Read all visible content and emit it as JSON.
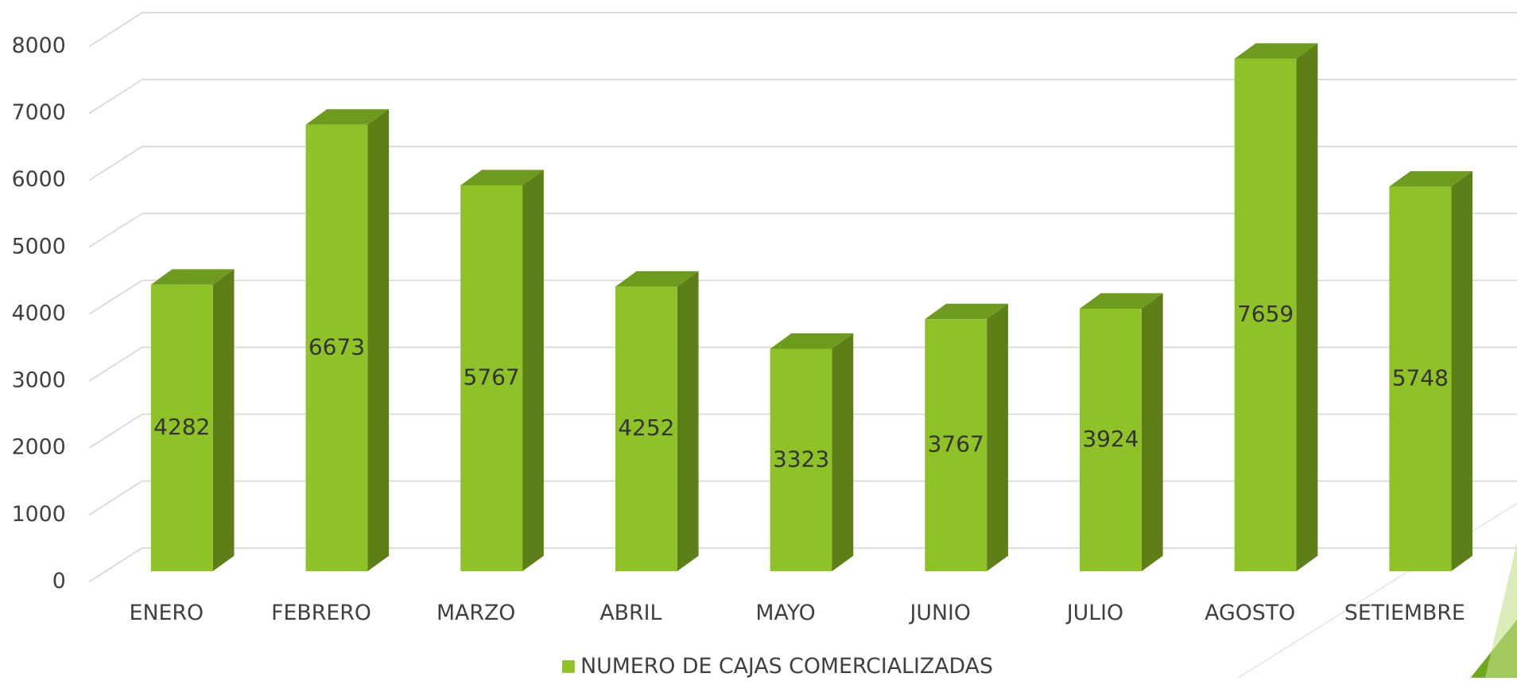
{
  "chart_data": {
    "type": "bar3d",
    "categories": [
      "ENERO",
      "FEBRERO",
      "MARZO",
      "ABRIL",
      "MAYO",
      "JUNIO",
      "JULIO",
      "AGOSTO",
      "SETIEMBRE"
    ],
    "series": [
      {
        "name": "NUMERO DE CAJAS COMERCIALIZADAS",
        "color": "#8fc226",
        "values": [
          4282,
          6673,
          5767,
          4252,
          3323,
          3767,
          3924,
          7659,
          5748
        ]
      }
    ],
    "ylim": [
      0,
      8000
    ],
    "yticks": [
      0,
      1000,
      2000,
      3000,
      4000,
      5000,
      6000,
      7000,
      8000
    ],
    "grid": true,
    "legend": "bottom"
  }
}
